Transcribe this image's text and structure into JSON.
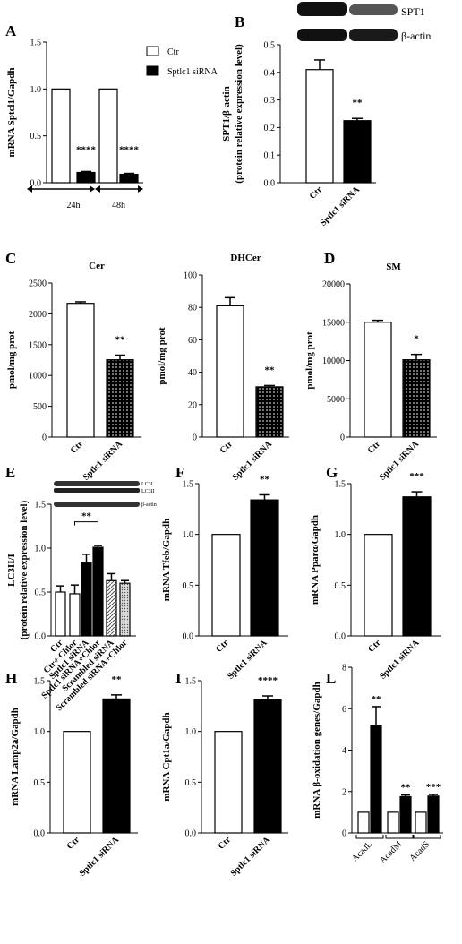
{
  "legend": {
    "items": [
      "Ctr",
      "Sptlc1 siRNA"
    ]
  },
  "chart_data": [
    {
      "id": "A",
      "panel_label": "A",
      "type": "bar",
      "title": "",
      "ylabel": "mRNA Sptcl1/Gapdh",
      "groups": [
        "24h",
        "48h"
      ],
      "series": [
        {
          "name": "Ctr",
          "values": [
            1.0,
            1.0
          ],
          "errors": [
            0,
            0
          ]
        },
        {
          "name": "Sptlc1 siRNA",
          "values": [
            0.11,
            0.09
          ],
          "errors": [
            0.01,
            0.01
          ]
        }
      ],
      "significance": [
        "****",
        "****"
      ],
      "ylim": [
        0,
        1.5
      ],
      "yticks": [
        "0.0",
        "0.5",
        "1.0",
        "1.5"
      ]
    },
    {
      "id": "B",
      "panel_label": "B",
      "type": "bar",
      "title": "",
      "ylabel": "SPT1/β-actin",
      "ylabel2": "(protein relative expression level)",
      "categories": [
        "Ctr",
        "Sptlc1 siRNA"
      ],
      "values": [
        0.41,
        0.225
      ],
      "errors": [
        0.035,
        0.008
      ],
      "significance": [
        "",
        "**"
      ],
      "ylim": [
        0,
        0.5
      ],
      "yticks": [
        "0.0",
        "0.1",
        "0.2",
        "0.3",
        "0.4",
        "0.5"
      ],
      "blot_labels": [
        "SPT1",
        "β-actin"
      ]
    },
    {
      "id": "C1",
      "panel_label": "C",
      "type": "bar",
      "title": "Cer",
      "ylabel": "pmol/mg prot",
      "categories": [
        "Ctr",
        "Sptlc1 siRNA"
      ],
      "values": [
        2170,
        1255
      ],
      "errors": [
        25,
        75
      ],
      "significance": [
        "",
        "**"
      ],
      "ylim": [
        0,
        2500
      ],
      "yticks": [
        "0",
        "500",
        "1000",
        "1500",
        "2000",
        "2500"
      ]
    },
    {
      "id": "C2",
      "panel_label": "",
      "type": "bar",
      "title": "DHCer",
      "ylabel": "pmol/mg prot",
      "categories": [
        "Ctr",
        "Sptlc1 siRNA"
      ],
      "values": [
        81,
        31
      ],
      "errors": [
        5,
        0.8
      ],
      "significance": [
        "",
        "**"
      ],
      "ylim": [
        0,
        100
      ],
      "yticks": [
        "0",
        "20",
        "40",
        "60",
        "80",
        "100"
      ]
    },
    {
      "id": "D",
      "panel_label": "D",
      "type": "bar",
      "title": "SM",
      "ylabel": "pmol/mg prot",
      "categories": [
        "Ctr",
        "Sptlc1 siRNA"
      ],
      "values": [
        15000,
        10100
      ],
      "errors": [
        250,
        700
      ],
      "significance": [
        "",
        "*"
      ],
      "ylim": [
        0,
        20000
      ],
      "yticks": [
        "0",
        "5000",
        "10000",
        "15000",
        "20000"
      ]
    },
    {
      "id": "E",
      "panel_label": "E",
      "type": "bar",
      "title": "",
      "ylabel": "LC3II/I",
      "ylabel2": "(protein relative expression level)",
      "categories": [
        "Ctr",
        "Ctr+ Chlor",
        "Sptlc1 siRNA",
        "Sptlc1 siRNA+Chlor",
        "Scrambled siRNA",
        "Scrambled siRNA+Chlor"
      ],
      "values": [
        0.5,
        0.48,
        0.83,
        1.01,
        0.63,
        0.6
      ],
      "errors": [
        0.07,
        0.1,
        0.1,
        0.02,
        0.08,
        0.03
      ],
      "bracket": {
        "from": 1,
        "to": 3,
        "label": "**"
      },
      "ylim": [
        0,
        1.5
      ],
      "yticks": [
        "0.0",
        "0.5",
        "1.0",
        "1.5"
      ],
      "blot_labels": [
        "LC3I",
        "LC3II",
        "β-actin"
      ]
    },
    {
      "id": "F",
      "panel_label": "F",
      "type": "bar",
      "title": "",
      "ylabel": "mRNA Tfeb/Gapdh",
      "categories": [
        "Ctr",
        "Sptlc1 siRNA"
      ],
      "values": [
        1.0,
        1.34
      ],
      "errors": [
        0,
        0.05
      ],
      "significance": [
        "",
        "**"
      ],
      "ylim": [
        0,
        1.5
      ],
      "yticks": [
        "0.0",
        "0.5",
        "1.0",
        "1.5"
      ]
    },
    {
      "id": "G",
      "panel_label": "G",
      "type": "bar",
      "title": "",
      "ylabel": "mRNA Pparα/Gapdh",
      "categories": [
        "Ctr",
        "Sptlc1 siRNA"
      ],
      "values": [
        1.0,
        1.37
      ],
      "errors": [
        0,
        0.05
      ],
      "significance": [
        "",
        "***"
      ],
      "ylim": [
        0,
        1.5
      ],
      "yticks": [
        "0.0",
        "0.5",
        "1.0",
        "1.5"
      ]
    },
    {
      "id": "H",
      "panel_label": "H",
      "type": "bar",
      "title": "",
      "ylabel": "mRNA Lamp2a/Gapdh",
      "categories": [
        "Ctr",
        "Sptlc1 siRNA"
      ],
      "values": [
        1.0,
        1.32
      ],
      "errors": [
        0,
        0.04
      ],
      "significance": [
        "",
        "**"
      ],
      "ylim": [
        0,
        1.5
      ],
      "yticks": [
        "0.0",
        "0.5",
        "1.0",
        "1.5"
      ]
    },
    {
      "id": "I",
      "panel_label": "I",
      "type": "bar",
      "title": "",
      "ylabel": "mRNA Cpt1a/Gapdh",
      "categories": [
        "Ctr",
        "Sptlc1 siRNA"
      ],
      "values": [
        1.0,
        1.31
      ],
      "errors": [
        0,
        0.04
      ],
      "significance": [
        "",
        "****"
      ],
      "ylim": [
        0,
        1.5
      ],
      "yticks": [
        "0.0",
        "0.5",
        "1.0",
        "1.5"
      ]
    },
    {
      "id": "L",
      "panel_label": "L",
      "type": "bar",
      "title": "",
      "ylabel": "mRNA β-oxidation genes/Gapdh",
      "groups": [
        "AcadL",
        "AcadM",
        "AcadS"
      ],
      "series": [
        {
          "name": "Ctr",
          "values": [
            1.0,
            1.0,
            1.0
          ],
          "errors": [
            0,
            0,
            0
          ]
        },
        {
          "name": "Sptlc1 siRNA",
          "values": [
            5.2,
            1.75,
            1.78
          ],
          "errors": [
            0.9,
            0.08,
            0.08
          ]
        }
      ],
      "significance": [
        "**",
        "**",
        "***"
      ],
      "ylim": [
        0,
        8
      ],
      "yticks": [
        "0",
        "2",
        "4",
        "6",
        "8"
      ]
    }
  ]
}
